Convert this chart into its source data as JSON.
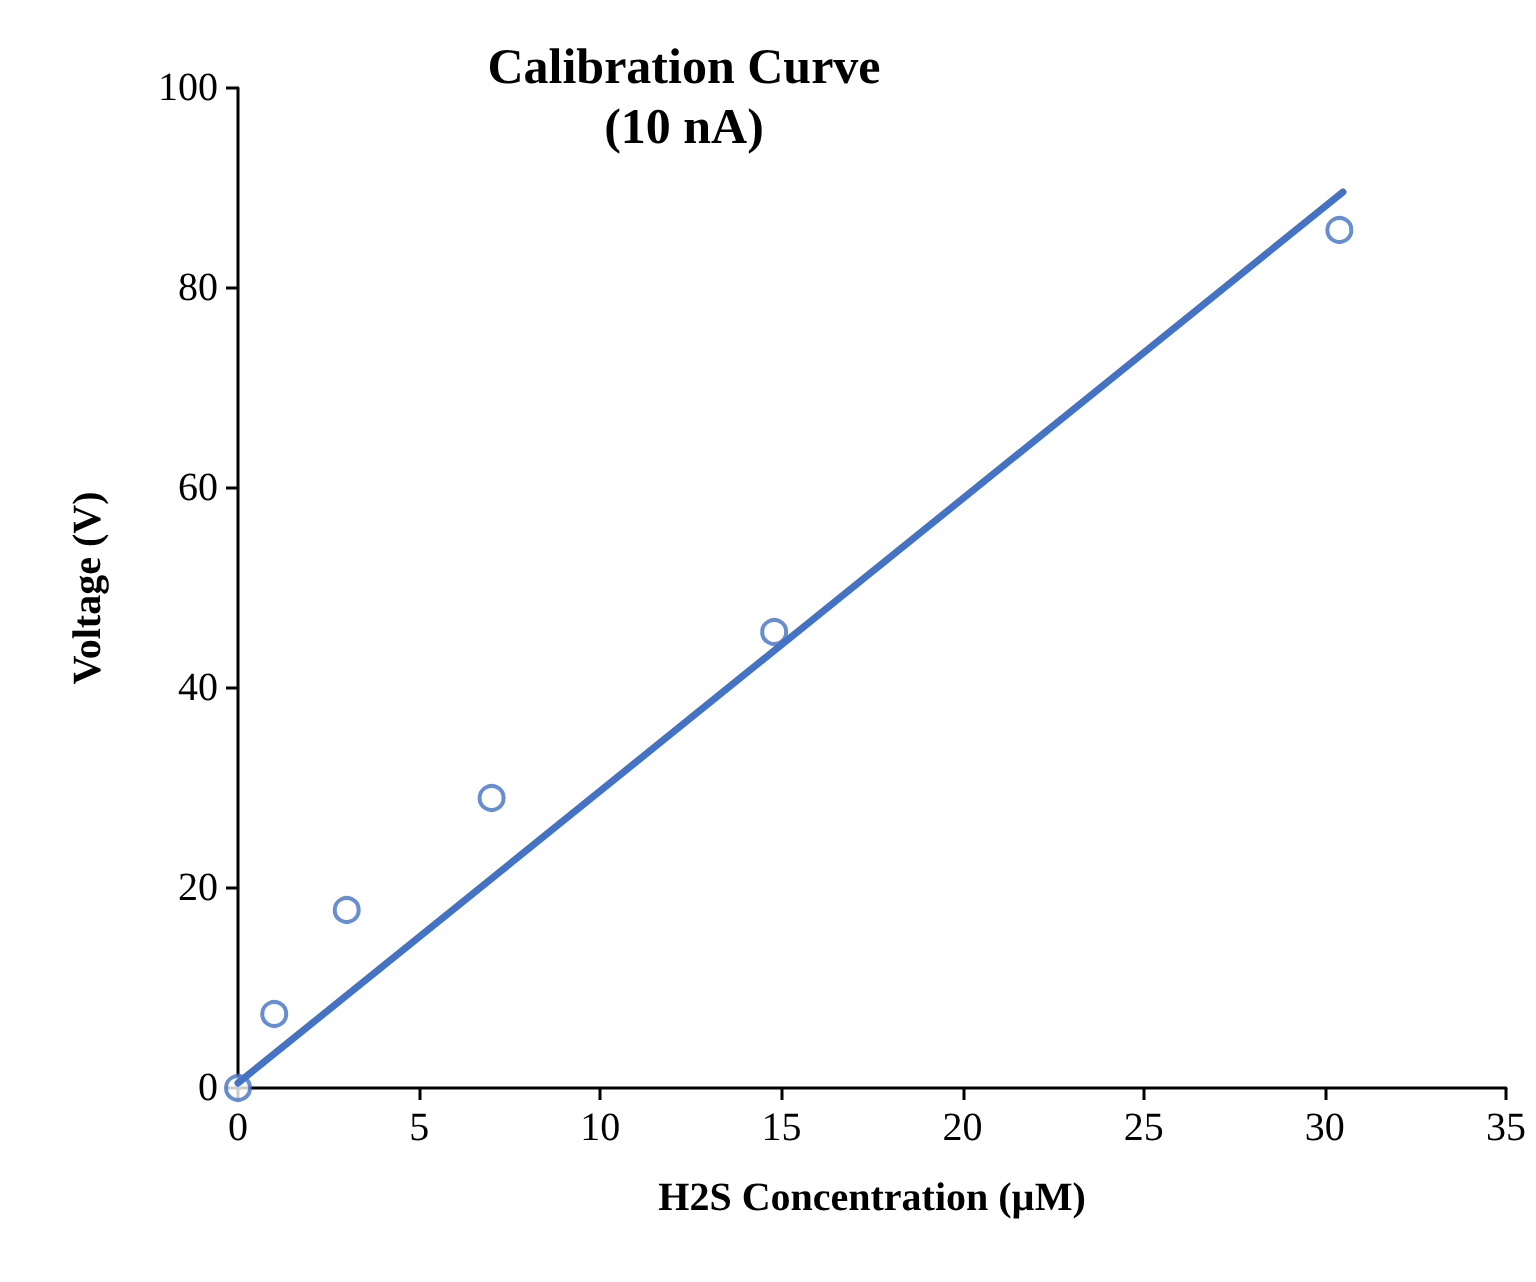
{
  "chart_data": {
    "type": "scatter",
    "title": "Calibration Curve\n(10 nA)",
    "xlabel": "H2S Concentration (µM)",
    "ylabel": "Voltage (V)",
    "xlim": [
      0,
      35
    ],
    "xticks": [
      0,
      5,
      10,
      15,
      20,
      25,
      30,
      35
    ],
    "ylim": [
      0,
      100
    ],
    "yticks": [
      0,
      20,
      40,
      60,
      80,
      100
    ],
    "grid": false,
    "marker": "circle",
    "series": [
      {
        "color": "#4472c4",
        "x": [
          0,
          1.0,
          3.0,
          7.0,
          14.8,
          30.4
        ],
        "values": [
          0,
          7.4,
          17.8,
          29,
          45.6,
          85.8
        ]
      },
      {
        "type": "line",
        "color": "#4472c4",
        "marker": "none",
        "line_style": "solid",
        "x": [
          0,
          30.5
        ],
        "values": [
          0.5,
          89.6
        ]
      }
    ]
  }
}
